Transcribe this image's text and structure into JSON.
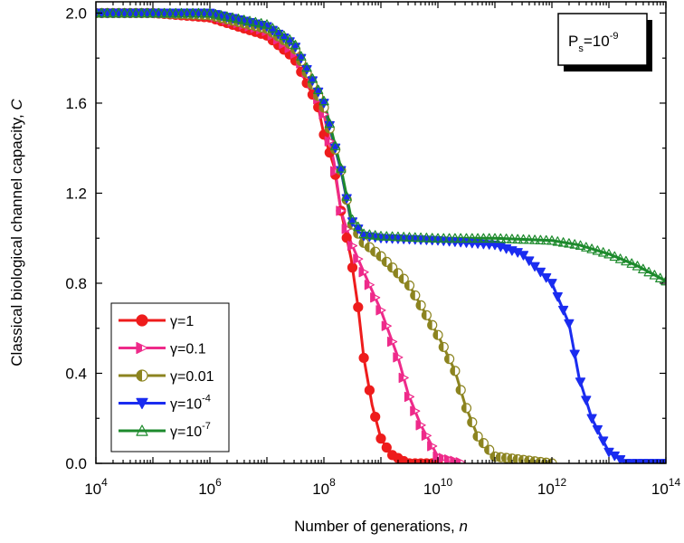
{
  "chart_data": {
    "type": "line",
    "xlabel": "Number of generations, ",
    "xlabel_var": "n",
    "ylabel": "Classical biological channel capacity, ",
    "ylabel_var": "C",
    "x_scale": "log",
    "xlim": [
      10000,
      100000000000000
    ],
    "ylim": [
      0.0,
      2.05
    ],
    "x_tick_labels": [
      {
        "base": "10",
        "exp": "4"
      },
      {
        "base": "10",
        "exp": "6"
      },
      {
        "base": "10",
        "exp": "8"
      },
      {
        "base": "10",
        "exp": "10"
      },
      {
        "base": "10",
        "exp": "12"
      },
      {
        "base": "10",
        "exp": "14"
      }
    ],
    "x_tick_values": [
      10000,
      1000000,
      100000000,
      10000000000,
      1000000000000,
      100000000000000
    ],
    "y_ticks": [
      "0.0",
      "0.4",
      "0.8",
      "1.2",
      "1.6",
      "2.0"
    ],
    "y_tick_values": [
      0.0,
      0.4,
      0.8,
      1.2,
      1.6,
      2.0
    ],
    "annotation": {
      "main": "P",
      "sub": "s",
      "eq": "=10",
      "sup": "-9"
    },
    "legend_position": "bottom-left",
    "series": [
      {
        "name": "γ=1",
        "name_base": "γ=1",
        "name_sup": "",
        "color": "#ee1c1c",
        "marker": "circle-filled",
        "x": [
          10000,
          100000,
          1000000,
          10000000,
          30000000,
          60000000,
          80000000,
          100000000,
          150000000,
          200000000,
          300000000,
          400000000,
          500000000,
          700000000,
          1000000000,
          1500000000,
          3000000000,
          10000000000
        ],
        "y": [
          2.0,
          2.0,
          1.98,
          1.9,
          1.8,
          1.65,
          1.58,
          1.46,
          1.32,
          1.12,
          0.91,
          0.69,
          0.47,
          0.26,
          0.11,
          0.04,
          0.0,
          0.0
        ]
      },
      {
        "name": "γ=0.1",
        "name_base": "γ=0.1",
        "name_sup": "",
        "color": "#ee2a8a",
        "marker": "triangle-right-half",
        "x": [
          10000,
          100000,
          1000000,
          10000000,
          30000000,
          60000000,
          100000000,
          150000000,
          200000000,
          300000000,
          500000000,
          1000000000,
          2000000000,
          3000000000,
          5000000000,
          10000000000,
          30000000000
        ],
        "y": [
          2.0,
          2.0,
          1.99,
          1.92,
          1.83,
          1.7,
          1.55,
          1.34,
          1.12,
          0.98,
          0.85,
          0.68,
          0.47,
          0.31,
          0.17,
          0.03,
          0.0
        ]
      },
      {
        "name": "γ=0.01",
        "name_base": "γ=0.01",
        "name_sup": "",
        "color": "#8c8420",
        "marker": "circle-half",
        "x": [
          10000,
          100000,
          1000000,
          10000000,
          30000000,
          100000000,
          200000000,
          300000000,
          500000000,
          1000000000,
          3000000000,
          10000000000,
          20000000000,
          30000000000,
          50000000000,
          100000000000,
          1000000000000
        ],
        "y": [
          2.0,
          2.0,
          1.99,
          1.93,
          1.85,
          1.58,
          1.3,
          1.07,
          0.98,
          0.92,
          0.8,
          0.57,
          0.41,
          0.26,
          0.12,
          0.03,
          0.0
        ]
      },
      {
        "name": "γ=10-4",
        "name_base": "γ=10",
        "name_sup": "-4",
        "color": "#1a2cf0",
        "marker": "triangle-down-filled",
        "x": [
          10000,
          100000,
          1000000,
          10000000,
          30000000,
          100000000,
          200000000,
          300000000,
          500000000,
          1000000000,
          10000000000,
          100000000000,
          300000000000,
          1000000000000,
          2000000000000,
          3000000000000,
          5000000000000,
          10000000000000,
          20000000000000,
          100000000000000
        ],
        "y": [
          2.0,
          2.0,
          2.0,
          1.94,
          1.86,
          1.6,
          1.3,
          1.08,
          1.01,
          1.0,
          0.99,
          0.97,
          0.93,
          0.8,
          0.62,
          0.38,
          0.2,
          0.05,
          0.0,
          0.0
        ]
      },
      {
        "name": "γ=10-7",
        "name_base": "γ=10",
        "name_sup": "-7",
        "color": "#1d8a2c",
        "marker": "triangle-up-open",
        "x": [
          10000,
          100000,
          1000000,
          10000000,
          30000000,
          100000000,
          200000000,
          300000000,
          500000000,
          1000000000,
          10000000000,
          100000000000,
          1000000000000,
          3000000000000,
          10000000000000,
          30000000000000,
          100000000000000
        ],
        "y": [
          2.0,
          2.0,
          2.0,
          1.95,
          1.87,
          1.61,
          1.31,
          1.09,
          1.02,
          1.01,
          1.0,
          1.0,
          0.99,
          0.97,
          0.93,
          0.88,
          0.81
        ]
      }
    ]
  }
}
